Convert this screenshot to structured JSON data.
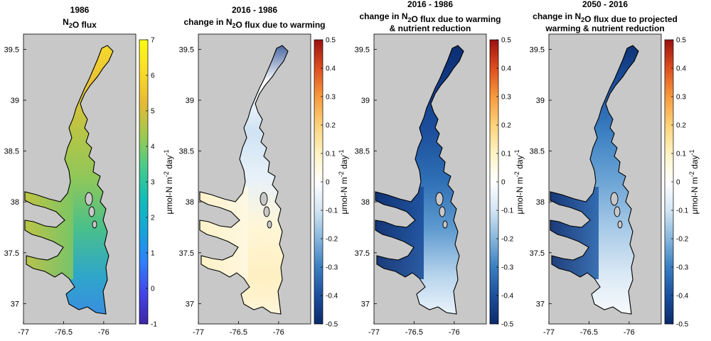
{
  "chart_data": [
    {
      "type": "heatmap",
      "title_lines": [
        "1986",
        "N2O flux"
      ],
      "title_rich": [
        [
          "1986"
        ],
        [
          "N",
          {
            "sub": "2"
          },
          "O flux"
        ]
      ],
      "xticks": [
        "-77",
        "-76.5",
        "-76"
      ],
      "yticks": [
        "39.5",
        "39",
        "38.5",
        "38",
        "37.5",
        "37"
      ],
      "xlim": [
        -77,
        -75.6
      ],
      "ylim": [
        36.8,
        39.65
      ],
      "colorbar": {
        "label": "μmol-N m-2 day-1",
        "ticks": [
          "7",
          "6",
          "5",
          "4",
          "3",
          "2",
          "1",
          "0",
          "-1"
        ],
        "range": [
          -1,
          7
        ],
        "colormap": "parula"
      },
      "field": "absolute N2O flux, 1986; higher in upper and mid bay (about 4 to 6), about 3 to 4 in tributaries and lower bay"
    },
    {
      "type": "heatmap",
      "title_lines": [
        "2016 - 1986",
        "change in N2O flux due to warming"
      ],
      "title_rich": [
        [
          "2016 - 1986"
        ],
        [
          "change in N",
          {
            "sub": "2"
          },
          "O flux due to warming"
        ]
      ],
      "xticks": [
        "-77",
        "-76.5",
        "-76"
      ],
      "yticks": [
        "39.5",
        "39",
        "38.5",
        "38",
        "37.5",
        "37"
      ],
      "xlim": [
        -77,
        -75.6
      ],
      "ylim": [
        36.8,
        39.65
      ],
      "colorbar": {
        "label": "μmol-N m-2 day-1",
        "ticks": [
          "0.5",
          "0.4",
          "0.3",
          "0.2",
          "0.1",
          "0",
          "-0.1",
          "-0.2",
          "-0.3",
          "-0.4",
          "-0.5"
        ],
        "range": [
          -0.5,
          0.5
        ],
        "colormap": "diverging blue-white-red"
      },
      "field": "mostly near 0; slight positive in lower bay and tributaries (about +0.05), slight negative in upper bay (about -0.1 to -0.2), strong negative near 39.6"
    },
    {
      "type": "heatmap",
      "title_lines": [
        "2016 - 1986",
        "change in N2O flux due to warming",
        "& nutrient reduction"
      ],
      "title_rich": [
        [
          "2016 - 1986"
        ],
        [
          "change in N",
          {
            "sub": "2"
          },
          "O flux due to warming"
        ],
        [
          "& nutrient reduction"
        ]
      ],
      "xticks": [
        "-77",
        "-76.5",
        "-76"
      ],
      "yticks": [
        "39.5",
        "39",
        "38.5",
        "38",
        "37.5",
        "37"
      ],
      "xlim": [
        -77,
        -75.6
      ],
      "ylim": [
        36.8,
        39.65
      ],
      "colorbar": {
        "label": "μmol-N m-2 day-1",
        "ticks": [
          "0.5",
          "0.4",
          "0.3",
          "0.2",
          "0.1",
          "0",
          "-0.1",
          "-0.2",
          "-0.3",
          "-0.4",
          "-0.5"
        ],
        "range": [
          -0.5,
          0.5
        ],
        "colormap": "diverging blue-white-red"
      },
      "field": "strong decrease (about -0.5) in upper bay and western tributaries, moderate decrease (about -0.3) in mid bay, near 0 in lower bay"
    },
    {
      "type": "heatmap",
      "title_lines": [
        "2050 - 2016",
        "change in N2O flux due to projected",
        "warming & nutrient reduction"
      ],
      "title_rich": [
        [
          "2050 - 2016"
        ],
        [
          "change in N",
          {
            "sub": "2"
          },
          "O flux due to projected"
        ],
        [
          "warming & nutrient reduction"
        ]
      ],
      "xticks": [
        "-77",
        "-76.5",
        "-76"
      ],
      "yticks": [
        "39.5",
        "39",
        "38.5",
        "38",
        "37.5",
        "37"
      ],
      "xlim": [
        -77,
        -75.6
      ],
      "ylim": [
        36.8,
        39.65
      ],
      "colorbar": {
        "label": "μmol-N m-2 day-1",
        "ticks": [
          "0.5",
          "0.4",
          "0.3",
          "0.2",
          "0.1",
          "0",
          "-0.1",
          "-0.2",
          "-0.3",
          "-0.4",
          "-0.5"
        ],
        "range": [
          -0.5,
          0.5
        ],
        "colormap": "diverging blue-white-red"
      },
      "field": "strong decrease (about -0.5) in upper bay and western tributaries, moderate decrease (about -0.2 to -0.3) in mid bay, near 0 in lower bay"
    }
  ],
  "colors": {
    "land": "#c8c8c8",
    "coast": "#000000",
    "parula": [
      "#3e26a8",
      "#4346e8",
      "#2e82fa",
      "#16a6d6",
      "#13beb7",
      "#4bcb89",
      "#a0c94f",
      "#e6ba35",
      "#fadc2a",
      "#f9fb15"
    ],
    "diverging": [
      "#0b2a6b",
      "#1c4f9c",
      "#3a7fc1",
      "#87b6dc",
      "#d3e5f3",
      "#ffffff",
      "#fff3c4",
      "#fdd27a",
      "#f79a3e",
      "#dd4f1f",
      "#9c1111"
    ]
  }
}
